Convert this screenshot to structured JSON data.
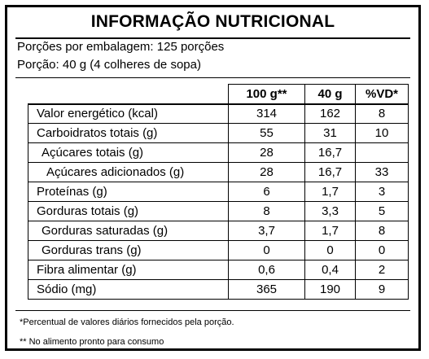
{
  "title": "INFORMAÇÃO NUTRICIONAL",
  "serving": {
    "per_package": "Porções por embalagem: 125 porções",
    "portion": "Porção: 40 g (4 colheres de sopa)"
  },
  "table": {
    "headers": [
      "",
      "100 g**",
      "40 g",
      "%VD*"
    ],
    "rows": [
      {
        "name": "Valor energético (kcal)",
        "v100": "314",
        "v40": "162",
        "vd": "8"
      },
      {
        "name": "Carboidratos totais (g)",
        "v100": "55",
        "v40": "31",
        "vd": "10"
      },
      {
        "name": "Açúcares totais (g)",
        "v100": "28",
        "v40": "16,7",
        "vd": ""
      },
      {
        "name": "Açúcares adicionados (g)",
        "v100": "28",
        "v40": "16,7",
        "vd": "33"
      },
      {
        "name": "Proteínas (g)",
        "v100": "6",
        "v40": "1,7",
        "vd": "3"
      },
      {
        "name": "Gorduras totais (g)",
        "v100": "8",
        "v40": "3,3",
        "vd": "5"
      },
      {
        "name": "Gorduras saturadas (g)",
        "v100": "3,7",
        "v40": "1,7",
        "vd": "8"
      },
      {
        "name": "Gorduras trans (g)",
        "v100": "0",
        "v40": "0",
        "vd": "0"
      },
      {
        "name": "Fibra alimentar (g)",
        "v100": "0,6",
        "v40": "0,4",
        "vd": "2"
      },
      {
        "name": "Sódio (mg)",
        "v100": "365",
        "v40": "190",
        "vd": "9"
      }
    ]
  },
  "footnotes": {
    "daily_value": "*Percentual de valores diários fornecidos pela porção.",
    "ready": "** No alimento pronto para consumo"
  }
}
